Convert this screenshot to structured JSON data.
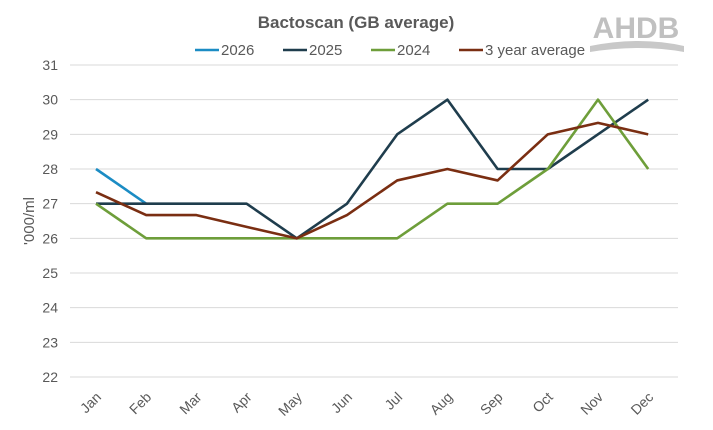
{
  "chart_data": {
    "type": "line",
    "title": "Bactoscan (GB average)",
    "xlabel": "",
    "ylabel": "'000/ml",
    "ylim": [
      22,
      31
    ],
    "yticks": [
      22,
      23,
      24,
      25,
      26,
      27,
      28,
      29,
      30,
      31
    ],
    "grid": true,
    "legend_position": "top",
    "categories": [
      "Jan",
      "Feb",
      "Mar",
      "Apr",
      "May",
      "Jun",
      "Jul",
      "Aug",
      "Sep",
      "Oct",
      "Nov",
      "Dec"
    ],
    "series": [
      {
        "name": "2026",
        "color": "#1B8CC4",
        "values": [
          28,
          27,
          null,
          null,
          null,
          null,
          null,
          null,
          null,
          null,
          null,
          null
        ]
      },
      {
        "name": "2025",
        "color": "#1F3D4D",
        "values": [
          27,
          27,
          27,
          27,
          26,
          27,
          29,
          30,
          28,
          28,
          29,
          30
        ]
      },
      {
        "name": "2024",
        "color": "#6E9E3A",
        "values": [
          27,
          26,
          26,
          26,
          26,
          26,
          26,
          27,
          27,
          28,
          30,
          28
        ]
      },
      {
        "name": "3 year average",
        "color": "#7A2E12",
        "values": [
          27.33,
          26.67,
          26.67,
          26.33,
          26,
          26.67,
          27.67,
          28,
          27.67,
          29,
          29.33,
          29
        ]
      }
    ]
  },
  "logo": {
    "text": "AHDB",
    "color": "#B8B8B8"
  }
}
